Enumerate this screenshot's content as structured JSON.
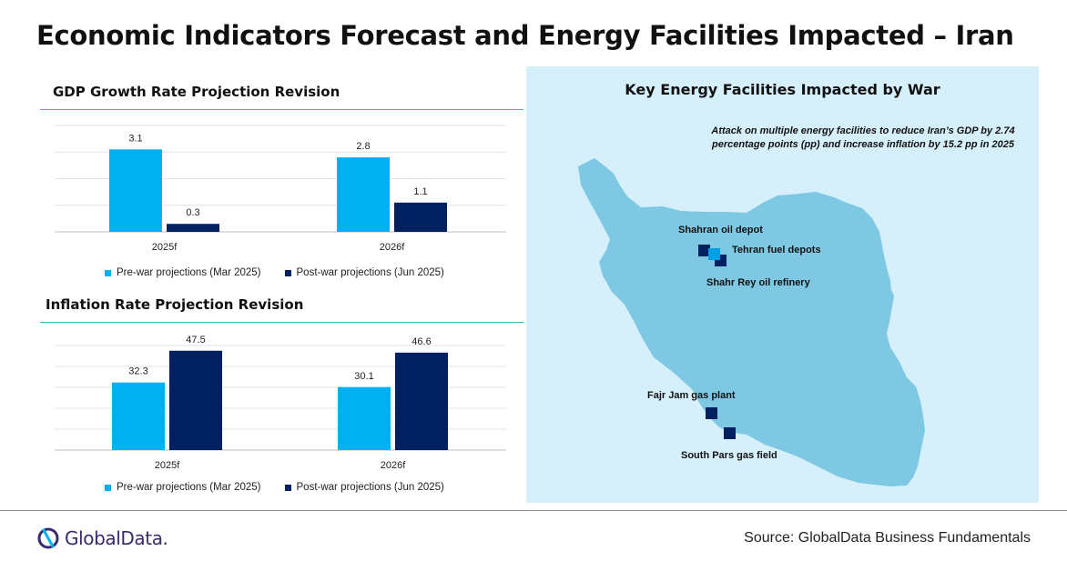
{
  "page": {
    "title": "Economic Indicators Forecast and Energy Facilities Impacted – Iran",
    "source": "Source: GlobalData Business Fundamentals",
    "logo_text": "GlobalData."
  },
  "colors": {
    "pre_war": "#00b0f0",
    "post_war": "#002060",
    "map_bg": "#d6f0fb",
    "iran_fill": "#7ec8e3",
    "accent_rule": "#3fb6c4",
    "marker_light": "#00a0e3"
  },
  "chart_data": [
    {
      "type": "bar",
      "title": "GDP Growth Rate Projection Revision",
      "categories": [
        "2025f",
        "2026f"
      ],
      "series": [
        {
          "name": "Pre-war projections (Mar 2025)",
          "values": [
            3.1,
            2.8
          ],
          "labels": [
            "3.1",
            "2.8"
          ]
        },
        {
          "name": "Post-war projections (Jun 2025)",
          "values": [
            0.3,
            1.1
          ],
          "labels": [
            "0.3",
            "1.1"
          ]
        }
      ],
      "ylim": [
        0,
        4
      ],
      "grid": true,
      "legend": "bottom"
    },
    {
      "type": "bar",
      "title": "Inflation Rate Projection Revision",
      "categories": [
        "2025f",
        "2026f"
      ],
      "series": [
        {
          "name": "Pre-war projections (Mar 2025)",
          "values": [
            32.3,
            30.1
          ],
          "labels": [
            "32.3",
            "30.1"
          ]
        },
        {
          "name": "Post-war projections (Jun 2025)",
          "values": [
            47.5,
            46.6
          ],
          "labels": [
            "47.5",
            "46.6"
          ]
        }
      ],
      "ylim": [
        0,
        50
      ],
      "grid": true,
      "legend": "bottom"
    }
  ],
  "map": {
    "title": "Key Energy Facilities Impacted by War",
    "note": "Attack on multiple energy facilities to reduce Iran’s GDP by 2.74 percentage points (pp) and increase inflation by 15.2 pp in 2025",
    "facilities": [
      {
        "name": "Shahran oil depot"
      },
      {
        "name": "Tehran fuel depots"
      },
      {
        "name": "Shahr Rey oil refinery"
      },
      {
        "name": "Fajr Jam gas plant"
      },
      {
        "name": "South Pars gas field"
      }
    ]
  }
}
